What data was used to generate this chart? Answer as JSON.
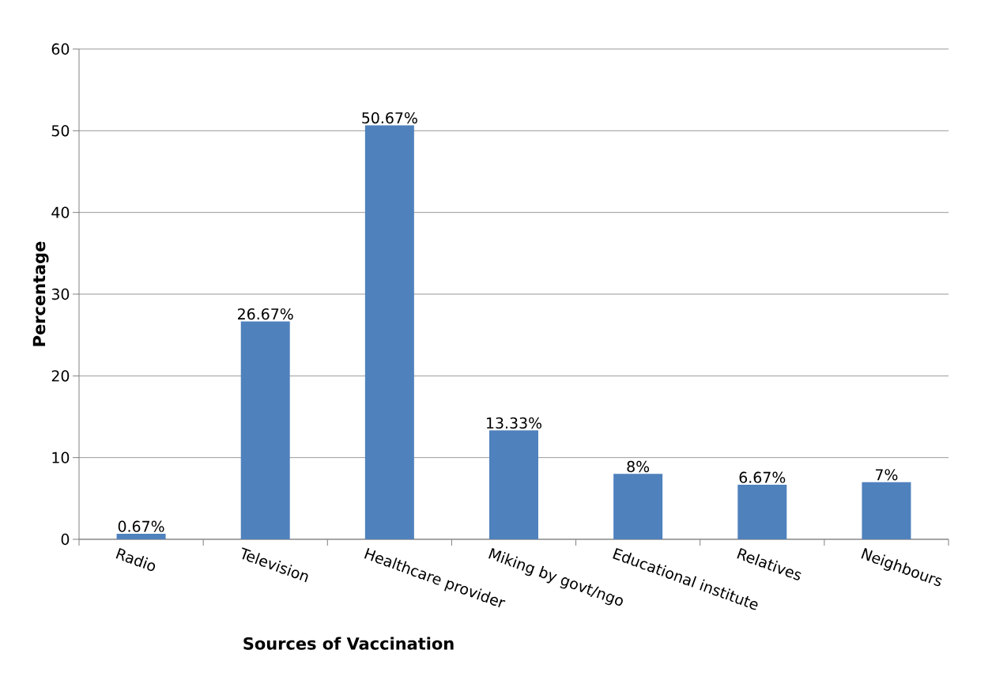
{
  "chart_data": {
    "type": "bar",
    "xlabel": "Sources of Vaccination",
    "ylabel": "Percentage",
    "categories": [
      "Radio",
      "Television",
      "Healthcare provider",
      "Miking by govt/ngo",
      "Educational institute",
      "Relatives",
      "Neighbours"
    ],
    "values": [
      0.67,
      26.67,
      50.67,
      13.33,
      8,
      6.67,
      7
    ],
    "value_labels": [
      "0.67%",
      "26.67%",
      "50.67%",
      "13.33%",
      "8%",
      "6.67%",
      "7%"
    ],
    "color": "#4f81bd",
    "ylim": [
      0,
      60
    ],
    "yticks": [
      0,
      10,
      20,
      30,
      40,
      50,
      60
    ],
    "grid": "y"
  }
}
